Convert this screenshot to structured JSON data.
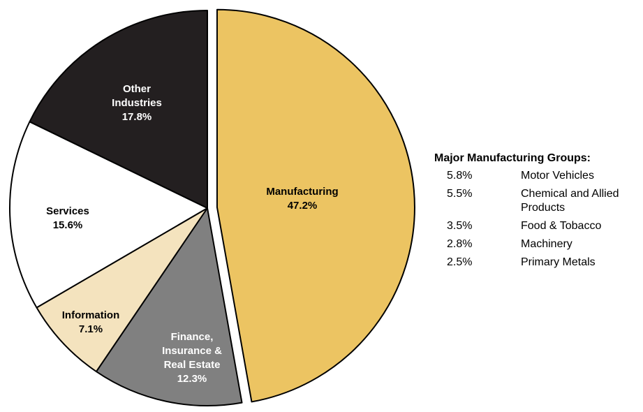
{
  "chart_data": {
    "type": "pie",
    "categories": [
      "Manufacturing",
      "Finance, Insurance & Real Estate",
      "Information",
      "Services",
      "Other Industries"
    ],
    "values": [
      47.2,
      12.3,
      7.1,
      15.6,
      17.8
    ],
    "value_labels": [
      "47.2%",
      "12.3%",
      "7.1%",
      "15.6%",
      "17.8%"
    ],
    "colors": [
      "#ecc462",
      "#808080",
      "#f4e3be",
      "#ffffff",
      "#231f20"
    ],
    "subgroups": {
      "title": "Major Manufacturing Groups:",
      "categories": [
        "Motor Vehicles",
        "Chemical and Allied Products",
        "Food & Tobacco",
        "Machinery",
        "Primary Metals"
      ],
      "values": [
        5.8,
        5.5,
        3.5,
        2.8,
        2.5
      ],
      "value_labels": [
        "5.8%",
        "5.5%",
        "3.5%",
        "2.8%",
        "2.5%"
      ]
    }
  }
}
